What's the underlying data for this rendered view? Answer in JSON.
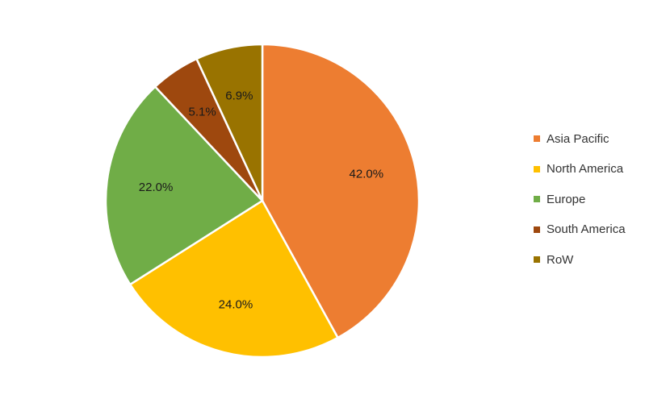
{
  "chart_data": {
    "type": "pie",
    "title": "",
    "categories": [
      "Asia Pacific",
      "North America",
      "Europe",
      "South America",
      "RoW"
    ],
    "values": [
      42.0,
      24.0,
      22.0,
      5.1,
      6.9
    ],
    "labels": [
      "42.0%",
      "24.0%",
      "22.0%",
      "5.1%",
      "6.9%"
    ],
    "colors": [
      "#ED7D31",
      "#FFC000",
      "#70AD47",
      "#9E480E",
      "#997300"
    ],
    "start_angle_deg": 0,
    "direction": "clockwise",
    "legend": {
      "position": "right",
      "items": [
        {
          "label": "Asia Pacific",
          "color": "#ED7D31"
        },
        {
          "label": "North America",
          "color": "#FFC000"
        },
        {
          "label": "Europe",
          "color": "#70AD47"
        },
        {
          "label": "South America",
          "color": "#9E480E"
        },
        {
          "label": "RoW",
          "color": "#997300"
        }
      ]
    }
  }
}
